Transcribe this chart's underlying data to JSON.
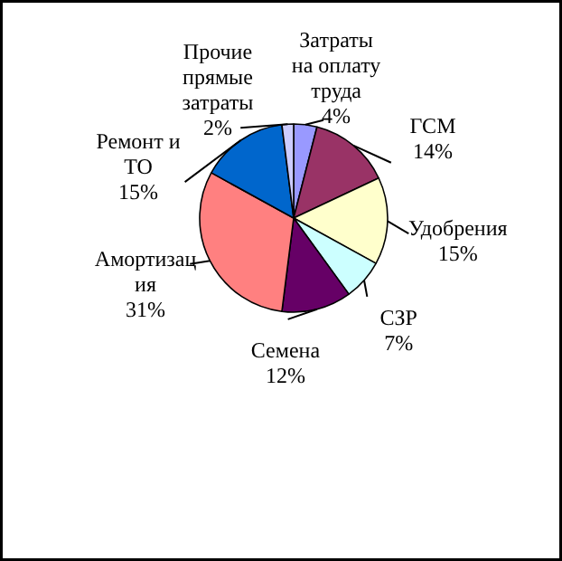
{
  "chart_data": {
    "type": "pie",
    "categories": [
      "Затраты на оплату труда",
      "ГСМ",
      "Удобрения",
      "СЗР",
      "Семена",
      "Амортизация",
      "Ремонт и ТО",
      "Прочие прямые затраты"
    ],
    "values": [
      4,
      14,
      15,
      7,
      12,
      31,
      15,
      2
    ],
    "value_labels": [
      "4%",
      "14%",
      "15%",
      "7%",
      "12%",
      "31%",
      "15%",
      "2%"
    ],
    "colors": [
      "#9999ff",
      "#993366",
      "#ffffcc",
      "#ccffff",
      "#660066",
      "#ff8080",
      "#0066cc",
      "#ccccff"
    ]
  }
}
